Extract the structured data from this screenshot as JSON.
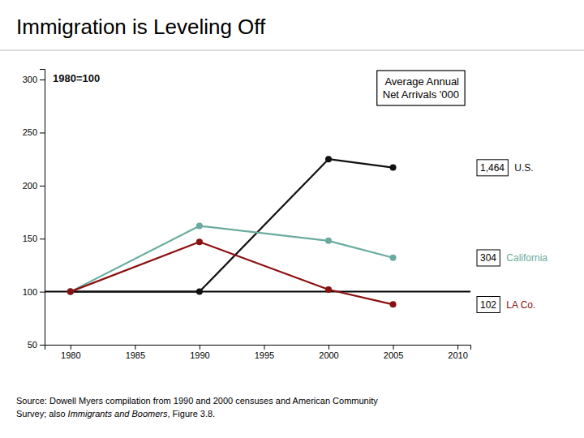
{
  "chart_data": {
    "type": "line",
    "title": "Immigration is Leveling Off",
    "subtitle": "1980=100",
    "x": [
      1980,
      1990,
      2000,
      2005
    ],
    "series": [
      {
        "name": "U.S.",
        "color": "#111111",
        "marker": "circle",
        "values": [
          100,
          100,
          225,
          217
        ],
        "end_label": "1,464"
      },
      {
        "name": "California",
        "color": "#6aaba0",
        "marker": "circle",
        "values": [
          100,
          162,
          148,
          132
        ],
        "end_label": "304"
      },
      {
        "name": "LA Co.",
        "color": "#8b1010",
        "marker": "circle",
        "values": [
          100,
          147,
          102,
          88
        ],
        "end_label": "102"
      }
    ],
    "xlim": [
      1978,
      2011
    ],
    "xticks": [
      1980,
      1985,
      1990,
      1995,
      2000,
      2005,
      2010
    ],
    "ylim": [
      50,
      310
    ],
    "yticks": [
      50,
      100,
      150,
      200,
      250,
      300
    ],
    "reference_line": 100,
    "note": [
      "Average Annual",
      "Net Arrivals '000"
    ],
    "source": {
      "line1": "Source: Dowell Myers compilation from 1990 and 2000 censuses and American Community",
      "line2": [
        "Survey; also ",
        "Immigrants and Boomers",
        ", Figure 3.8."
      ]
    },
    "grid": false
  }
}
